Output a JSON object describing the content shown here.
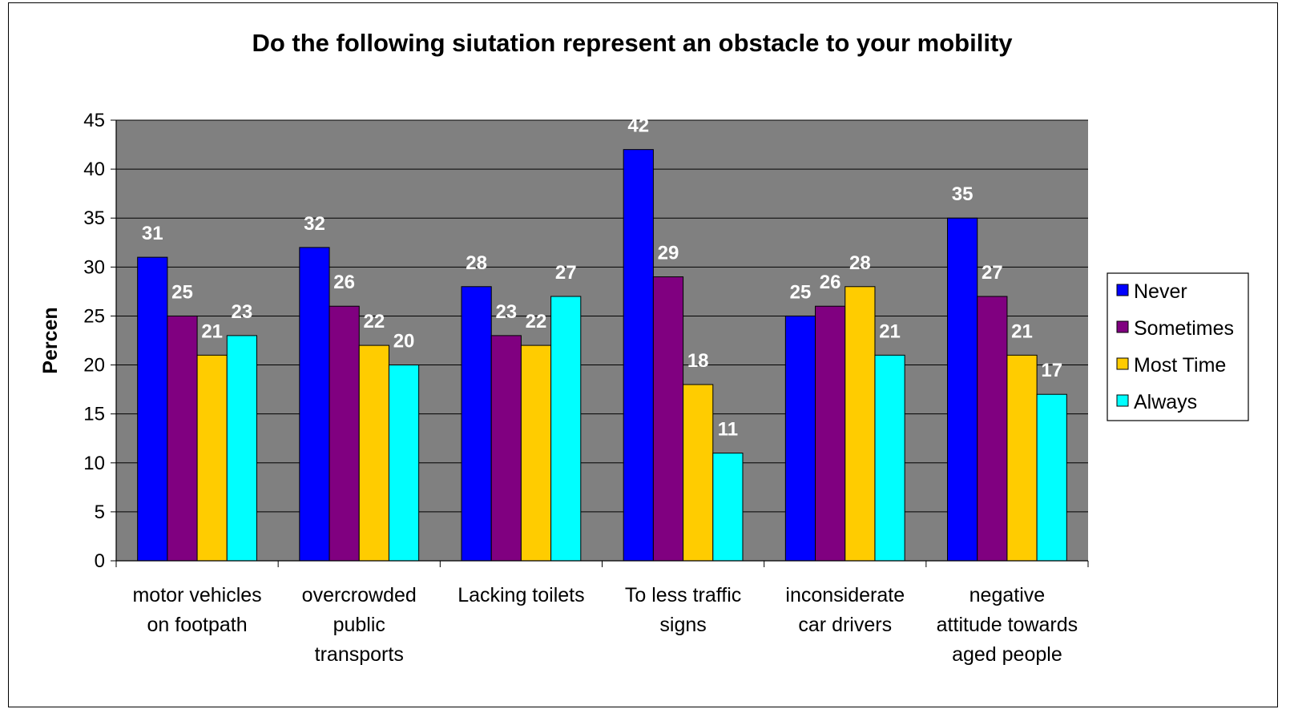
{
  "chart_data": {
    "type": "bar",
    "title": "Do the following siutation represent an obstacle to your mobility",
    "xlabel": "",
    "ylabel": "Percen",
    "ylim": [
      0,
      45
    ],
    "yticks": [
      0,
      5,
      10,
      15,
      20,
      25,
      30,
      35,
      40,
      45
    ],
    "grid": true,
    "legend_position": "right",
    "categories": [
      [
        "motor vehicles",
        "on footpath"
      ],
      [
        "overcrowded",
        "public",
        "transports"
      ],
      [
        "Lacking toilets"
      ],
      [
        "To less traffic",
        "signs"
      ],
      [
        "inconsiderate",
        "car drivers"
      ],
      [
        "negative",
        "attitude towards",
        "aged people"
      ]
    ],
    "series": [
      {
        "name": "Never",
        "color": "#0000ff",
        "values": [
          31,
          32,
          28,
          42,
          25,
          35
        ]
      },
      {
        "name": "Sometimes",
        "color": "#800080",
        "values": [
          25,
          26,
          23,
          29,
          26,
          27
        ]
      },
      {
        "name": "Most Time",
        "color": "#ffcc00",
        "values": [
          21,
          22,
          22,
          18,
          28,
          21
        ]
      },
      {
        "name": "Always",
        "color": "#00ffff",
        "values": [
          23,
          20,
          27,
          11,
          21,
          17
        ]
      }
    ],
    "plot_background": "#808080",
    "data_label_color": "#ffffff"
  }
}
